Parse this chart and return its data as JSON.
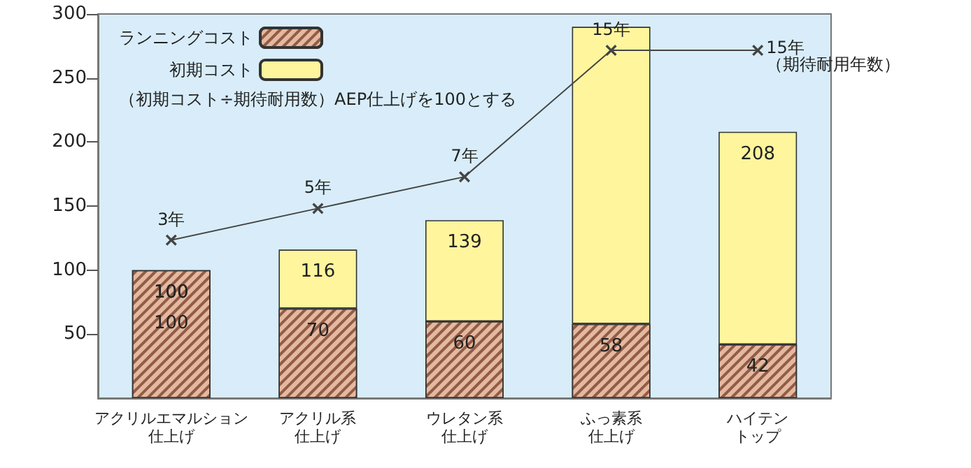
{
  "chart_data": {
    "type": "bar",
    "stacked": true,
    "categories": [
      "アクリルエマルション仕上げ",
      "アクリル系仕上げ",
      "ウレタン系仕上げ",
      "ふっ素系仕上げ",
      "ハイテントップ"
    ],
    "series": [
      {
        "name": "ランニングコスト",
        "color": "#e3b9a0",
        "values": [
          100,
          70,
          60,
          58,
          42
        ],
        "value_labels": [
          "100",
          "70",
          "60",
          "58",
          "42"
        ]
      },
      {
        "name": "初期コスト",
        "color": "#fff59d",
        "values": [
          0,
          46,
          79,
          232,
          166
        ]
      },
      {
        "type": "line",
        "axis": "y2",
        "color": "#444444",
        "marker": "cross",
        "values": [
          3,
          5,
          7,
          15,
          15
        ],
        "value_labels": [
          "3年",
          "5年",
          "7年",
          "15年",
          "15年（期待耐用年数）"
        ]
      }
    ],
    "totals": [
      "100",
      "116",
      "139",
      null,
      "208"
    ],
    "annotations": [
      "（初期コスト÷期待耐用数）AEP仕上げを100とする"
    ],
    "ylim": [
      0,
      300
    ],
    "yticks": [
      50,
      100,
      150,
      200,
      250,
      300
    ],
    "y2lim": [
      -7,
      17.3
    ],
    "grid": false,
    "legend": "top left"
  }
}
